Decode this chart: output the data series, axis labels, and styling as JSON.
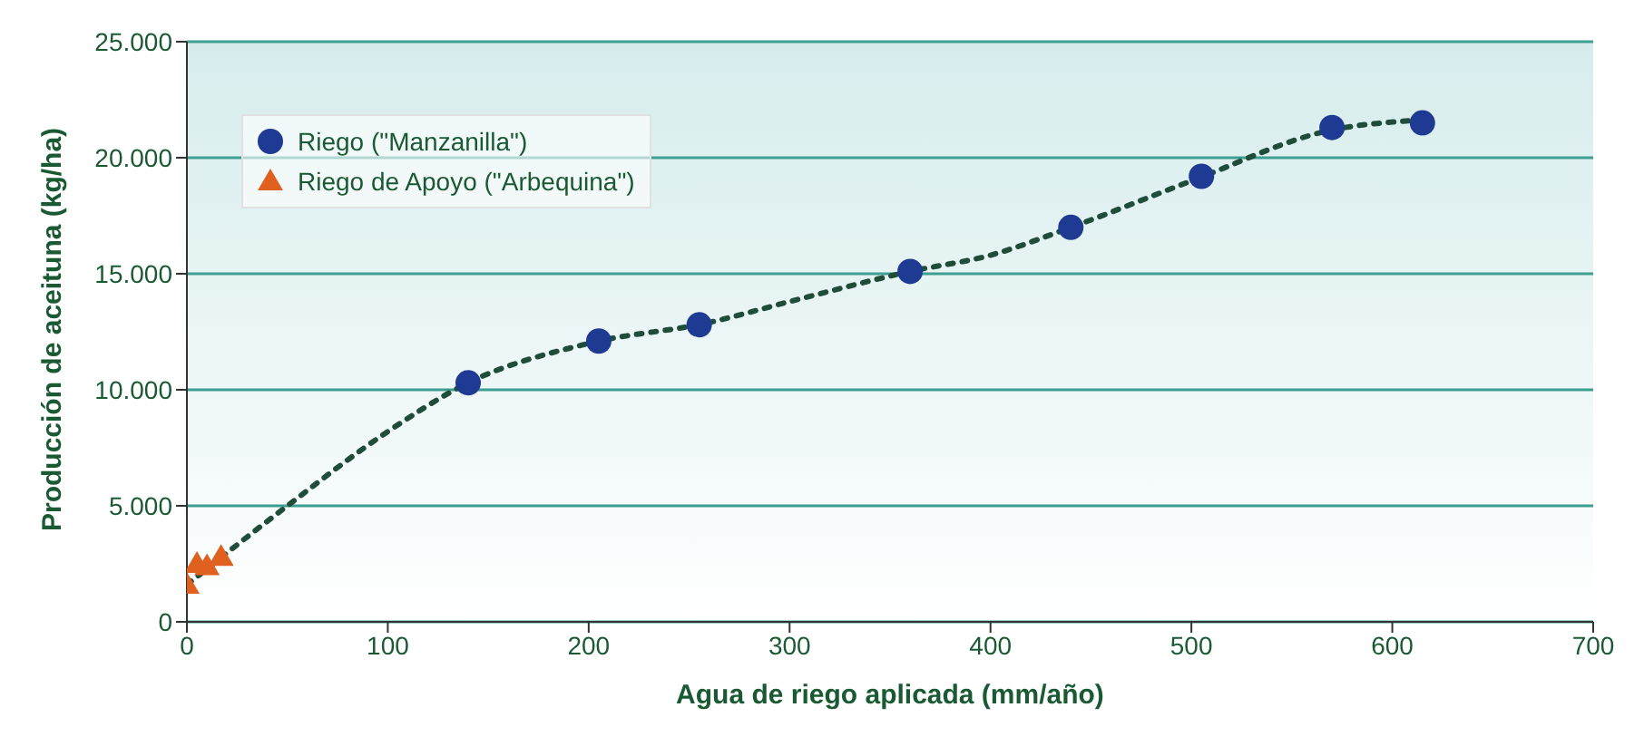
{
  "chart_data": {
    "type": "scatter",
    "xlabel": "Agua de riego aplicada (mm/año)",
    "ylabel": "Producción de aceituna (kg/ha)",
    "xlim": [
      0,
      700
    ],
    "xticks": [
      0,
      100,
      200,
      300,
      400,
      500,
      600,
      700
    ],
    "ylim": [
      0,
      25000
    ],
    "yticks": [
      0,
      {
        "value": 5000,
        "label": "5.000"
      },
      {
        "value": 10000,
        "label": "10.000"
      },
      {
        "value": 15000,
        "label": "15.000"
      },
      {
        "value": 20000,
        "label": "20.000"
      },
      {
        "value": 25000,
        "label": "25.000"
      }
    ],
    "grid": "y",
    "legend": "top left",
    "series": [
      {
        "name": "Riego (\"Manzanilla\")",
        "marker": "circle",
        "color": "#1f3a93",
        "x": [
          140,
          205,
          255,
          360,
          440,
          505,
          570,
          615
        ],
        "values": [
          10300,
          12100,
          12800,
          15100,
          17000,
          19200,
          21300,
          21500
        ]
      },
      {
        "name": "Riego de Apoyo (\"Arbequina\")",
        "marker": "triangle",
        "color": "#e0601f",
        "x": [
          0,
          5,
          10,
          17
        ],
        "values": [
          1600,
          2500,
          2400,
          2800
        ]
      },
      {
        "type": "line",
        "marker": "none",
        "line_style": "dotted",
        "color": "#1f4d3a",
        "x": [
          0,
          50,
          100,
          140,
          200,
          260,
          300,
          360,
          400,
          440,
          500,
          570,
          610
        ],
        "values": [
          1600,
          5000,
          8200,
          10300,
          12000,
          12900,
          13800,
          15100,
          15800,
          17000,
          19000,
          21200,
          21600
        ]
      }
    ]
  }
}
